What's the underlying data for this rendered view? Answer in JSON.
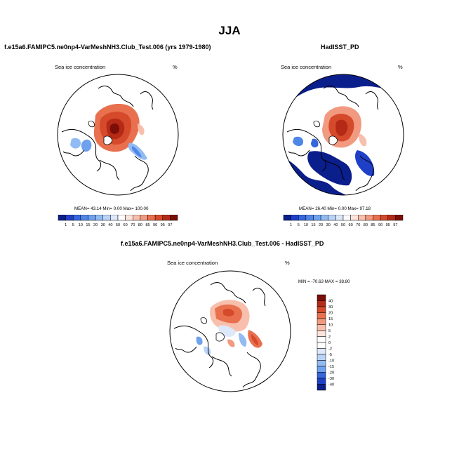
{
  "figure": {
    "title": "JJA"
  },
  "chart_data": [
    {
      "type": "heatmap",
      "projection": "north-polar-stereographic",
      "title": "f.e15a6.FAMIPC5.ne0np4-VarMeshNH3.Club_Test.006 (yrs 1979-1980)",
      "variable": "Sea ice concentration",
      "units": "%",
      "stats": "MEAN=  43.14  Min=  0.00  Max= 100.00",
      "colorbar": {
        "orientation": "horizontal",
        "levels": [
          "1",
          "5",
          "10",
          "15",
          "20",
          "30",
          "40",
          "50",
          "60",
          "70",
          "80",
          "85",
          "90",
          "95",
          "97"
        ],
        "colors": [
          "#0a1e8c",
          "#1f3fc8",
          "#3566dd",
          "#4f86e8",
          "#6fa1ef",
          "#92bbf3",
          "#b8d3f7",
          "#dde9fb",
          "#ffffff",
          "#fde3da",
          "#f8bfac",
          "#f29a80",
          "#e8704f",
          "#d64a2c",
          "#b52a17",
          "#7c0e08"
        ]
      }
    },
    {
      "type": "heatmap",
      "projection": "north-polar-stereographic",
      "title": "HadISST_PD",
      "variable": "Sea ice concentration",
      "units": "%",
      "stats": "MEAN=  26.40  Min=  0.00  Max=  97.18",
      "colorbar": {
        "orientation": "horizontal",
        "levels": [
          "1",
          "5",
          "10",
          "15",
          "20",
          "30",
          "40",
          "50",
          "60",
          "70",
          "80",
          "85",
          "90",
          "95",
          "97"
        ],
        "colors": [
          "#0a1e8c",
          "#1f3fc8",
          "#3566dd",
          "#4f86e8",
          "#6fa1ef",
          "#92bbf3",
          "#b8d3f7",
          "#dde9fb",
          "#ffffff",
          "#fde3da",
          "#f8bfac",
          "#f29a80",
          "#e8704f",
          "#d64a2c",
          "#b52a17",
          "#7c0e08"
        ]
      }
    },
    {
      "type": "heatmap",
      "projection": "north-polar-stereographic",
      "title": "f.e15a6.FAMIPC5.ne0np4-VarMeshNH3.Club_Test.006 - HadISST_PD",
      "variable": "Sea ice concentration",
      "units": "%",
      "stats": "MIN = -70.63 MAX =  38.80",
      "colorbar": {
        "orientation": "vertical",
        "levels": [
          "40",
          "30",
          "20",
          "15",
          "10",
          "5",
          "2",
          "0",
          "-2",
          "-5",
          "-10",
          "-15",
          "-20",
          "-30",
          "-40"
        ],
        "colors": [
          "#7c0e08",
          "#b52a17",
          "#d64a2c",
          "#e8704f",
          "#f29a80",
          "#f8bfac",
          "#fde3da",
          "#ffffff",
          "#ffffff",
          "#dde9fb",
          "#b8d3f7",
          "#92bbf3",
          "#6fa1ef",
          "#3566dd",
          "#1f3fc8",
          "#0a1e8c"
        ]
      }
    }
  ]
}
